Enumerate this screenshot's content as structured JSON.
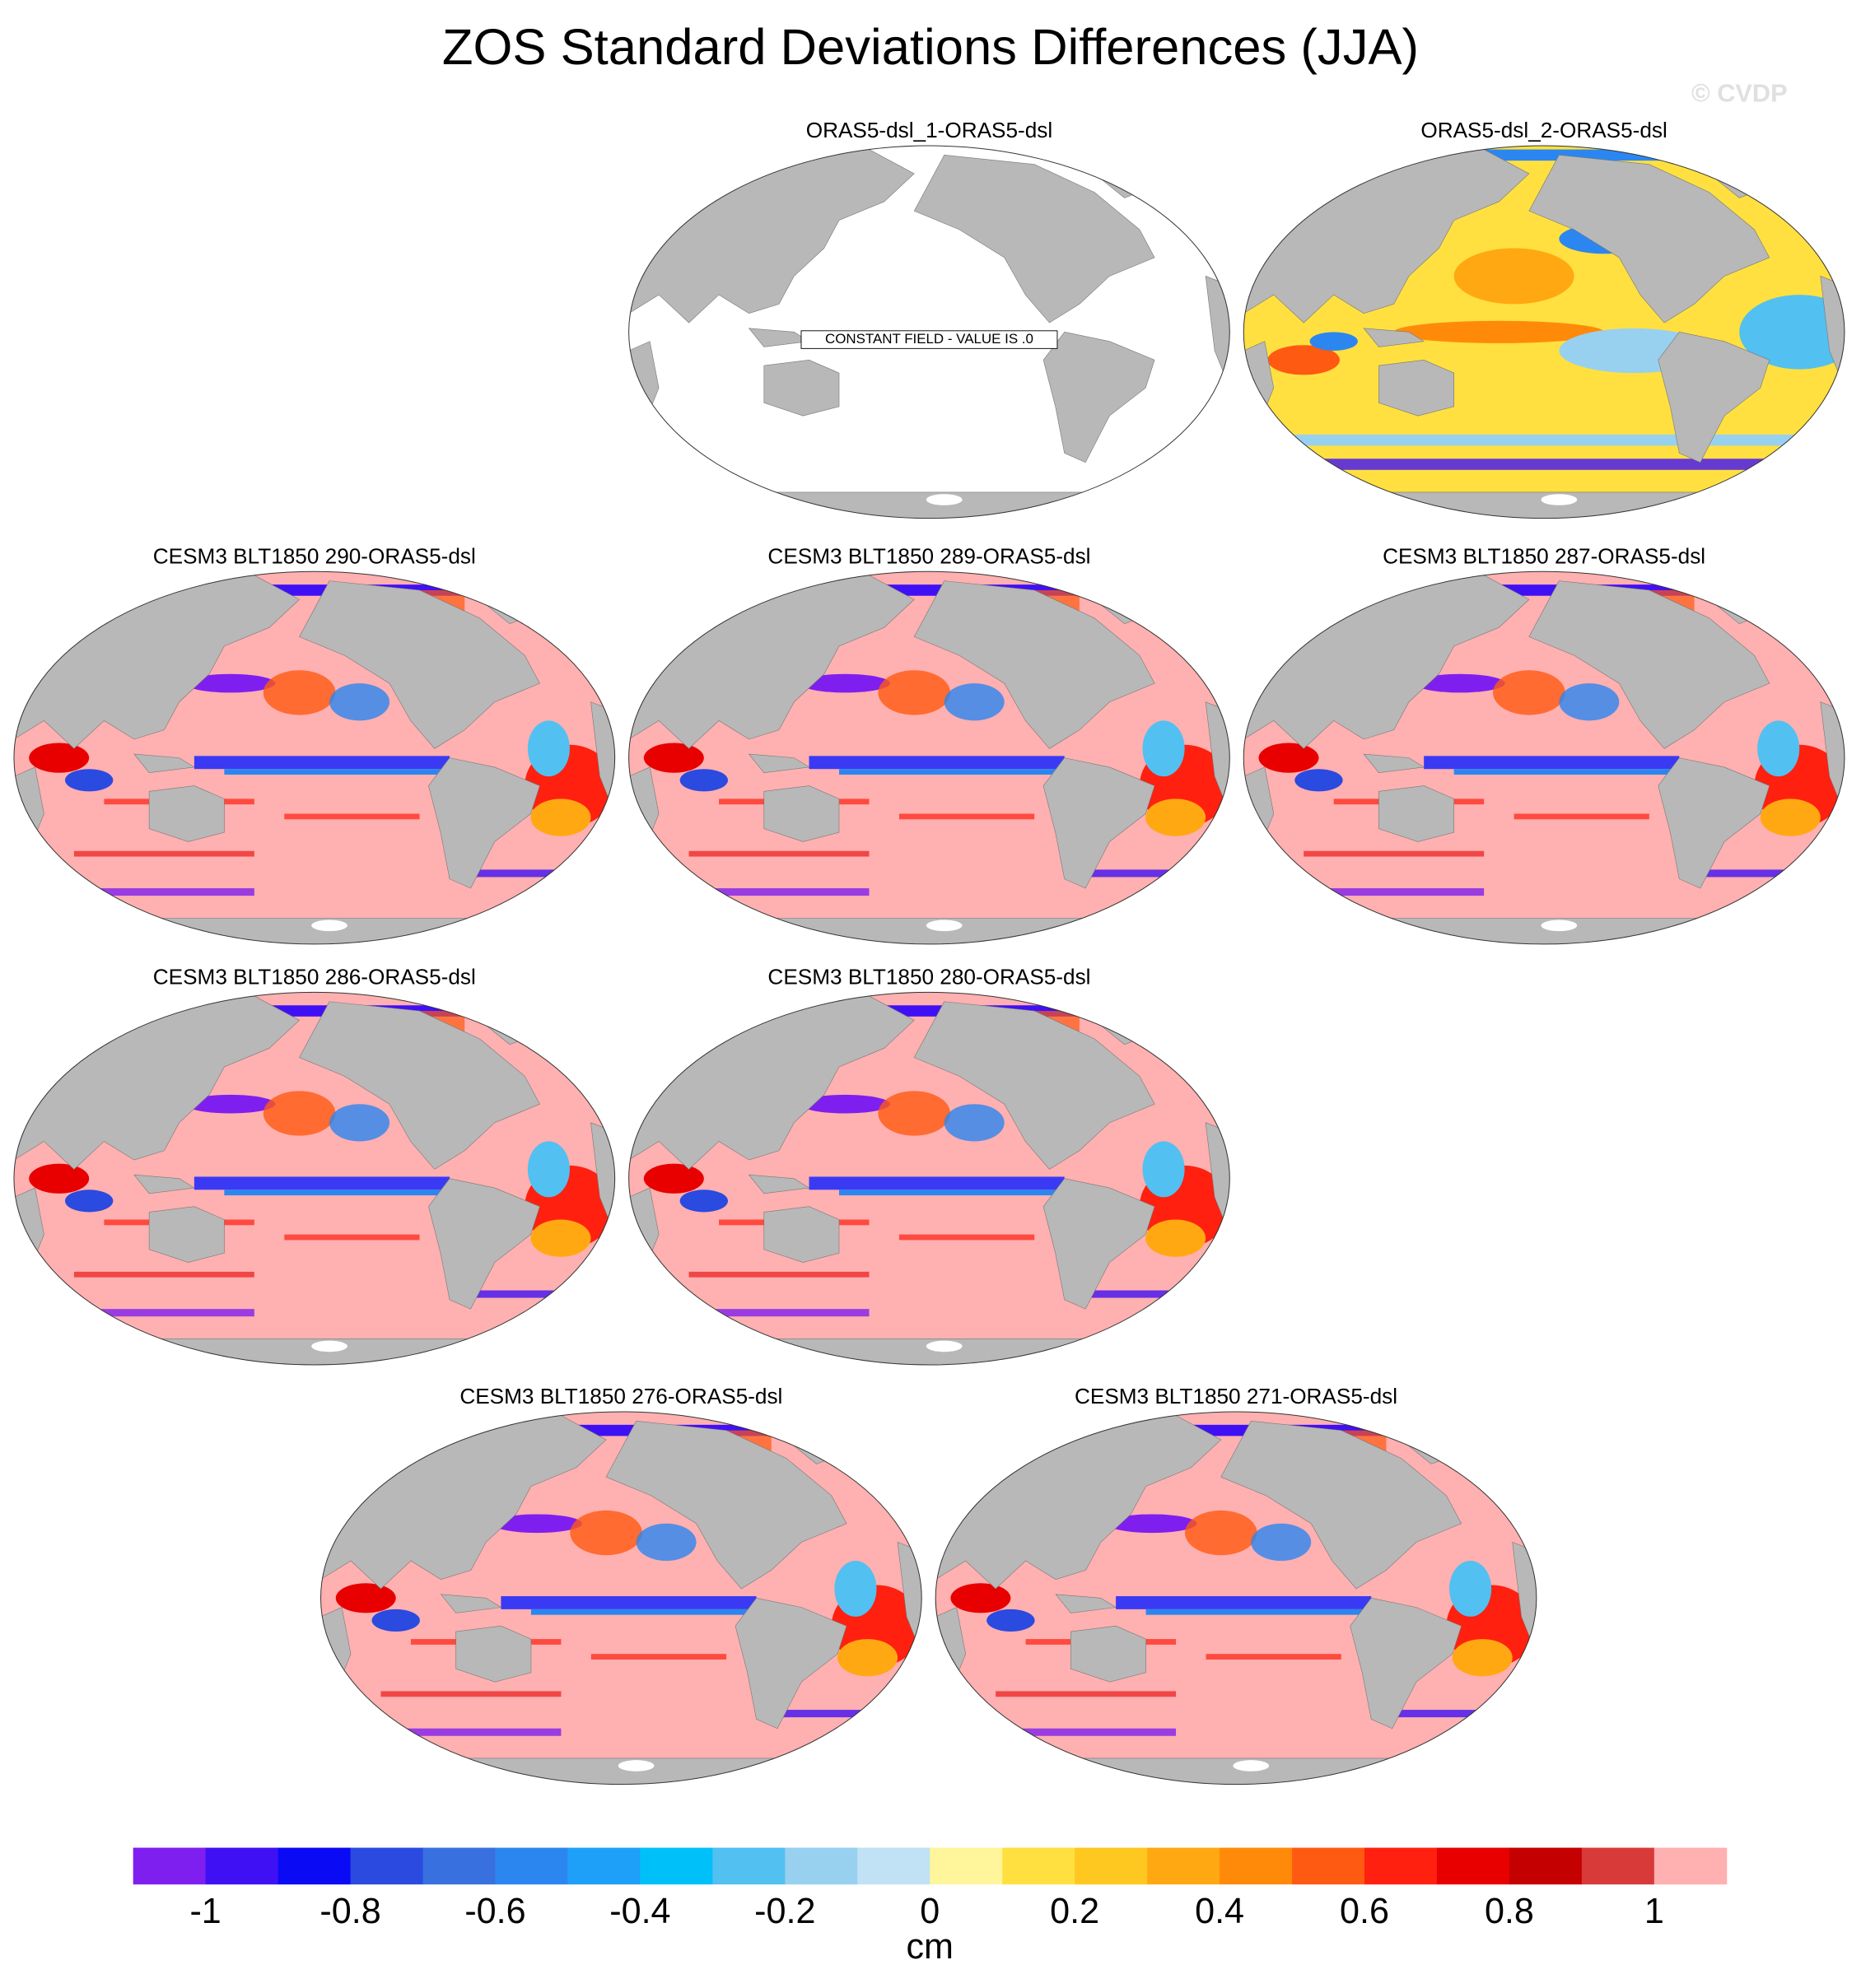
{
  "title": "ZOS Standard Deviations Differences (JJA)",
  "watermark": "© CVDP",
  "panels": [
    {
      "title": "ORAS5-dsl_1-ORAS5-dsl",
      "note": "CONSTANT FIELD - VALUE IS .0"
    },
    {
      "title": "ORAS5-dsl_2-ORAS5-dsl"
    },
    {
      "title": "CESM3 BLT1850 290-ORAS5-dsl"
    },
    {
      "title": "CESM3 BLT1850 289-ORAS5-dsl"
    },
    {
      "title": "CESM3 BLT1850 287-ORAS5-dsl"
    },
    {
      "title": "CESM3 BLT1850 286-ORAS5-dsl"
    },
    {
      "title": "CESM3 BLT1850 280-ORAS5-dsl"
    },
    {
      "title": "CESM3 BLT1850 276-ORAS5-dsl"
    },
    {
      "title": "CESM3 BLT1850 271-ORAS5-dsl"
    }
  ],
  "colorbar": {
    "label": "cm",
    "lim": [
      -1.1,
      1.1
    ],
    "ticks": [
      -1,
      -0.8,
      -0.6,
      -0.4,
      -0.2,
      0,
      0.2,
      0.4,
      0.6,
      0.8,
      1
    ],
    "colors": [
      "#7f1fef",
      "#4010f5",
      "#0a0af5",
      "#2a4ae0",
      "#3870e0",
      "#2c86f0",
      "#1ea0f8",
      "#00c0fa",
      "#52c0f0",
      "#98d0f0",
      "#c0e2f4",
      "#fff59a",
      "#ffe040",
      "#ffc820",
      "#ffa812",
      "#ff8a0a",
      "#ff5a12",
      "#ff2010",
      "#e80000",
      "#c40000",
      "#d83a3a",
      "#ffb0b0"
    ]
  }
}
